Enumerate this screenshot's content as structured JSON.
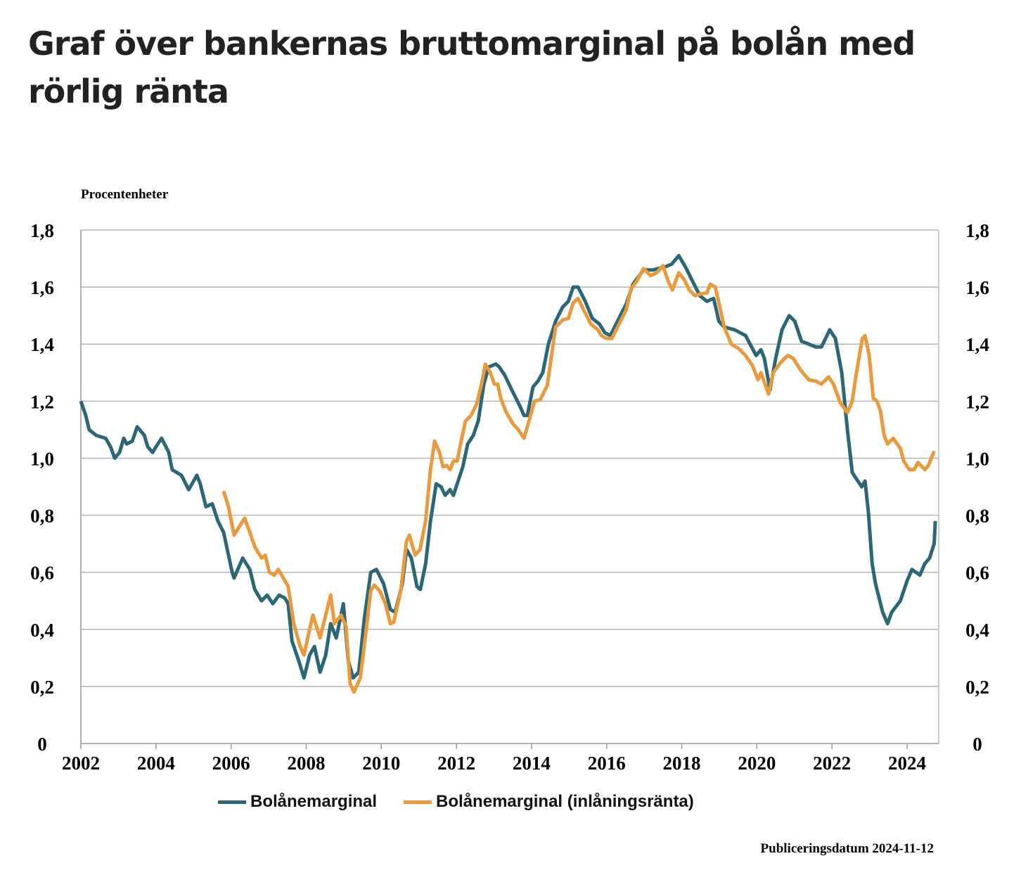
{
  "title": "Graf över bankernas bruttomarginal på bolån med rörlig ränta",
  "unit_label": "Procentenheter",
  "publication": "Publiceringsdatum 2024-11-12",
  "chart_data": {
    "type": "line",
    "title": "Graf över bankernas bruttomarginal på bolån med rörlig ränta",
    "ylabel": "Procentenheter",
    "xlim": [
      2002,
      2024.85
    ],
    "ylim": [
      0,
      1.8
    ],
    "x_ticks": [
      2002,
      2004,
      2006,
      2008,
      2010,
      2012,
      2014,
      2016,
      2018,
      2020,
      2022,
      2024
    ],
    "y_ticks": [
      0,
      0.2,
      0.4,
      0.6,
      0.8,
      1.0,
      1.2,
      1.4,
      1.6,
      1.8
    ],
    "y_tick_labels": [
      "0",
      "0,2",
      "0,4",
      "0,6",
      "0,8",
      "1,0",
      "1,2",
      "1,4",
      "1,6",
      "1,8"
    ],
    "grid": true,
    "legend_position": "bottom",
    "series": [
      {
        "name": "Bolånemarginal",
        "color": "#2b6777",
        "points": [
          [
            2002.0,
            1.2
          ],
          [
            2002.13,
            1.15
          ],
          [
            2002.22,
            1.1
          ],
          [
            2002.41,
            1.08
          ],
          [
            2002.66,
            1.07
          ],
          [
            2002.79,
            1.04
          ],
          [
            2002.9,
            1.0
          ],
          [
            2003.03,
            1.02
          ],
          [
            2003.14,
            1.07
          ],
          [
            2003.22,
            1.05
          ],
          [
            2003.37,
            1.06
          ],
          [
            2003.5,
            1.11
          ],
          [
            2003.69,
            1.08
          ],
          [
            2003.78,
            1.04
          ],
          [
            2003.91,
            1.02
          ],
          [
            2004.0,
            1.04
          ],
          [
            2004.15,
            1.07
          ],
          [
            2004.34,
            1.02
          ],
          [
            2004.43,
            0.96
          ],
          [
            2004.68,
            0.94
          ],
          [
            2004.87,
            0.89
          ],
          [
            2005.09,
            0.94
          ],
          [
            2005.18,
            0.91
          ],
          [
            2005.33,
            0.83
          ],
          [
            2005.5,
            0.84
          ],
          [
            2005.65,
            0.78
          ],
          [
            2005.8,
            0.74
          ],
          [
            2006.03,
            0.6
          ],
          [
            2006.08,
            0.58
          ],
          [
            2006.31,
            0.65
          ],
          [
            2006.5,
            0.61
          ],
          [
            2006.63,
            0.54
          ],
          [
            2006.81,
            0.5
          ],
          [
            2006.96,
            0.52
          ],
          [
            2007.11,
            0.49
          ],
          [
            2007.28,
            0.52
          ],
          [
            2007.43,
            0.51
          ],
          [
            2007.52,
            0.49
          ],
          [
            2007.62,
            0.36
          ],
          [
            2007.8,
            0.29
          ],
          [
            2007.94,
            0.23
          ],
          [
            2008.09,
            0.31
          ],
          [
            2008.22,
            0.34
          ],
          [
            2008.37,
            0.25
          ],
          [
            2008.52,
            0.31
          ],
          [
            2008.65,
            0.42
          ],
          [
            2008.8,
            0.37
          ],
          [
            2008.99,
            0.49
          ],
          [
            2009.12,
            0.29
          ],
          [
            2009.25,
            0.23
          ],
          [
            2009.4,
            0.25
          ],
          [
            2009.55,
            0.44
          ],
          [
            2009.72,
            0.6
          ],
          [
            2009.87,
            0.61
          ],
          [
            2010.06,
            0.56
          ],
          [
            2010.24,
            0.47
          ],
          [
            2010.37,
            0.46
          ],
          [
            2010.56,
            0.56
          ],
          [
            2010.67,
            0.68
          ],
          [
            2010.8,
            0.65
          ],
          [
            2010.95,
            0.55
          ],
          [
            2011.04,
            0.54
          ],
          [
            2011.18,
            0.63
          ],
          [
            2011.31,
            0.78
          ],
          [
            2011.46,
            0.91
          ],
          [
            2011.59,
            0.9
          ],
          [
            2011.7,
            0.87
          ],
          [
            2011.83,
            0.89
          ],
          [
            2011.92,
            0.87
          ],
          [
            2012.02,
            0.91
          ],
          [
            2012.17,
            0.97
          ],
          [
            2012.3,
            1.05
          ],
          [
            2012.45,
            1.08
          ],
          [
            2012.58,
            1.13
          ],
          [
            2012.73,
            1.26
          ],
          [
            2012.86,
            1.32
          ],
          [
            2013.05,
            1.33
          ],
          [
            2013.14,
            1.32
          ],
          [
            2013.29,
            1.29
          ],
          [
            2013.51,
            1.23
          ],
          [
            2013.7,
            1.18
          ],
          [
            2013.8,
            1.15
          ],
          [
            2013.89,
            1.15
          ],
          [
            2014.04,
            1.25
          ],
          [
            2014.17,
            1.27
          ],
          [
            2014.3,
            1.3
          ],
          [
            2014.45,
            1.4
          ],
          [
            2014.64,
            1.48
          ],
          [
            2014.83,
            1.53
          ],
          [
            2014.98,
            1.55
          ],
          [
            2015.11,
            1.6
          ],
          [
            2015.24,
            1.6
          ],
          [
            2015.43,
            1.55
          ],
          [
            2015.62,
            1.49
          ],
          [
            2015.81,
            1.47
          ],
          [
            2015.95,
            1.44
          ],
          [
            2016.1,
            1.43
          ],
          [
            2016.29,
            1.48
          ],
          [
            2016.52,
            1.54
          ],
          [
            2016.7,
            1.61
          ],
          [
            2016.98,
            1.66
          ],
          [
            2017.23,
            1.66
          ],
          [
            2017.54,
            1.67
          ],
          [
            2017.73,
            1.68
          ],
          [
            2017.92,
            1.71
          ],
          [
            2018.1,
            1.67
          ],
          [
            2018.29,
            1.62
          ],
          [
            2018.48,
            1.57
          ],
          [
            2018.67,
            1.55
          ],
          [
            2018.85,
            1.56
          ],
          [
            2018.99,
            1.48
          ],
          [
            2019.13,
            1.46
          ],
          [
            2019.41,
            1.45
          ],
          [
            2019.7,
            1.43
          ],
          [
            2019.98,
            1.36
          ],
          [
            2020.11,
            1.38
          ],
          [
            2020.2,
            1.35
          ],
          [
            2020.35,
            1.24
          ],
          [
            2020.5,
            1.35
          ],
          [
            2020.67,
            1.45
          ],
          [
            2020.86,
            1.5
          ],
          [
            2021.01,
            1.48
          ],
          [
            2021.19,
            1.41
          ],
          [
            2021.38,
            1.4
          ],
          [
            2021.57,
            1.39
          ],
          [
            2021.72,
            1.39
          ],
          [
            2021.94,
            1.45
          ],
          [
            2022.09,
            1.42
          ],
          [
            2022.26,
            1.3
          ],
          [
            2022.41,
            1.1
          ],
          [
            2022.54,
            0.95
          ],
          [
            2022.69,
            0.92
          ],
          [
            2022.79,
            0.9
          ],
          [
            2022.88,
            0.92
          ],
          [
            2022.97,
            0.81
          ],
          [
            2023.07,
            0.63
          ],
          [
            2023.16,
            0.56
          ],
          [
            2023.35,
            0.46
          ],
          [
            2023.48,
            0.42
          ],
          [
            2023.59,
            0.46
          ],
          [
            2023.82,
            0.5
          ],
          [
            2024.0,
            0.57
          ],
          [
            2024.13,
            0.61
          ],
          [
            2024.34,
            0.59
          ],
          [
            2024.47,
            0.63
          ],
          [
            2024.6,
            0.65
          ],
          [
            2024.72,
            0.7
          ],
          [
            2024.75,
            0.78
          ]
        ]
      },
      {
        "name": "Bolånemarginal (inlåningsränta)",
        "color": "#e89a3c",
        "points": [
          [
            2005.8,
            0.885
          ],
          [
            2005.93,
            0.83
          ],
          [
            2006.08,
            0.73
          ],
          [
            2006.31,
            0.78
          ],
          [
            2006.36,
            0.79
          ],
          [
            2006.5,
            0.74
          ],
          [
            2006.63,
            0.69
          ],
          [
            2006.81,
            0.65
          ],
          [
            2006.91,
            0.66
          ],
          [
            2007.02,
            0.6
          ],
          [
            2007.15,
            0.59
          ],
          [
            2007.26,
            0.61
          ],
          [
            2007.39,
            0.58
          ],
          [
            2007.52,
            0.55
          ],
          [
            2007.67,
            0.42
          ],
          [
            2007.84,
            0.34
          ],
          [
            2007.94,
            0.31
          ],
          [
            2008.09,
            0.4
          ],
          [
            2008.18,
            0.45
          ],
          [
            2008.37,
            0.37
          ],
          [
            2008.5,
            0.44
          ],
          [
            2008.65,
            0.52
          ],
          [
            2008.75,
            0.42
          ],
          [
            2008.93,
            0.45
          ],
          [
            2009.06,
            0.41
          ],
          [
            2009.17,
            0.21
          ],
          [
            2009.27,
            0.18
          ],
          [
            2009.44,
            0.23
          ],
          [
            2009.59,
            0.39
          ],
          [
            2009.72,
            0.535
          ],
          [
            2009.81,
            0.555
          ],
          [
            2009.96,
            0.535
          ],
          [
            2010.11,
            0.49
          ],
          [
            2010.24,
            0.42
          ],
          [
            2010.33,
            0.425
          ],
          [
            2010.52,
            0.535
          ],
          [
            2010.67,
            0.71
          ],
          [
            2010.75,
            0.73
          ],
          [
            2010.9,
            0.66
          ],
          [
            2011.03,
            0.68
          ],
          [
            2011.18,
            0.78
          ],
          [
            2011.31,
            0.96
          ],
          [
            2011.42,
            1.06
          ],
          [
            2011.55,
            1.02
          ],
          [
            2011.64,
            0.97
          ],
          [
            2011.74,
            0.975
          ],
          [
            2011.83,
            0.96
          ],
          [
            2011.92,
            0.99
          ],
          [
            2012.02,
            0.99
          ],
          [
            2012.11,
            1.05
          ],
          [
            2012.24,
            1.13
          ],
          [
            2012.39,
            1.15
          ],
          [
            2012.54,
            1.19
          ],
          [
            2012.67,
            1.26
          ],
          [
            2012.77,
            1.33
          ],
          [
            2012.9,
            1.3
          ],
          [
            2013.01,
            1.26
          ],
          [
            2013.1,
            1.26
          ],
          [
            2013.18,
            1.21
          ],
          [
            2013.33,
            1.16
          ],
          [
            2013.51,
            1.12
          ],
          [
            2013.65,
            1.1
          ],
          [
            2013.8,
            1.07
          ],
          [
            2013.93,
            1.13
          ],
          [
            2014.08,
            1.2
          ],
          [
            2014.23,
            1.205
          ],
          [
            2014.42,
            1.255
          ],
          [
            2014.64,
            1.46
          ],
          [
            2014.83,
            1.485
          ],
          [
            2014.98,
            1.49
          ],
          [
            2015.11,
            1.545
          ],
          [
            2015.24,
            1.56
          ],
          [
            2015.39,
            1.52
          ],
          [
            2015.58,
            1.47
          ],
          [
            2015.77,
            1.45
          ],
          [
            2015.86,
            1.43
          ],
          [
            2015.99,
            1.42
          ],
          [
            2016.14,
            1.42
          ],
          [
            2016.33,
            1.47
          ],
          [
            2016.52,
            1.52
          ],
          [
            2016.65,
            1.595
          ],
          [
            2016.8,
            1.62
          ],
          [
            2016.98,
            1.665
          ],
          [
            2017.17,
            1.64
          ],
          [
            2017.33,
            1.65
          ],
          [
            2017.5,
            1.675
          ],
          [
            2017.64,
            1.62
          ],
          [
            2017.75,
            1.59
          ],
          [
            2017.92,
            1.65
          ],
          [
            2018.07,
            1.625
          ],
          [
            2018.2,
            1.59
          ],
          [
            2018.35,
            1.57
          ],
          [
            2018.48,
            1.575
          ],
          [
            2018.67,
            1.58
          ],
          [
            2018.76,
            1.61
          ],
          [
            2018.89,
            1.6
          ],
          [
            2018.99,
            1.545
          ],
          [
            2019.13,
            1.46
          ],
          [
            2019.32,
            1.4
          ],
          [
            2019.51,
            1.385
          ],
          [
            2019.7,
            1.36
          ],
          [
            2019.88,
            1.325
          ],
          [
            2020.03,
            1.275
          ],
          [
            2020.11,
            1.3
          ],
          [
            2020.31,
            1.225
          ],
          [
            2020.44,
            1.3
          ],
          [
            2020.63,
            1.335
          ],
          [
            2020.82,
            1.36
          ],
          [
            2020.97,
            1.35
          ],
          [
            2021.16,
            1.31
          ],
          [
            2021.38,
            1.275
          ],
          [
            2021.57,
            1.27
          ],
          [
            2021.72,
            1.26
          ],
          [
            2021.91,
            1.285
          ],
          [
            2022.04,
            1.26
          ],
          [
            2022.22,
            1.195
          ],
          [
            2022.41,
            1.16
          ],
          [
            2022.54,
            1.2
          ],
          [
            2022.64,
            1.29
          ],
          [
            2022.73,
            1.36
          ],
          [
            2022.81,
            1.42
          ],
          [
            2022.88,
            1.43
          ],
          [
            2022.99,
            1.36
          ],
          [
            2023.1,
            1.21
          ],
          [
            2023.2,
            1.2
          ],
          [
            2023.29,
            1.165
          ],
          [
            2023.39,
            1.08
          ],
          [
            2023.48,
            1.05
          ],
          [
            2023.63,
            1.07
          ],
          [
            2023.82,
            1.035
          ],
          [
            2023.91,
            0.99
          ],
          [
            2024.06,
            0.96
          ],
          [
            2024.19,
            0.96
          ],
          [
            2024.29,
            0.985
          ],
          [
            2024.47,
            0.96
          ],
          [
            2024.57,
            0.975
          ],
          [
            2024.72,
            1.025
          ]
        ]
      }
    ]
  }
}
